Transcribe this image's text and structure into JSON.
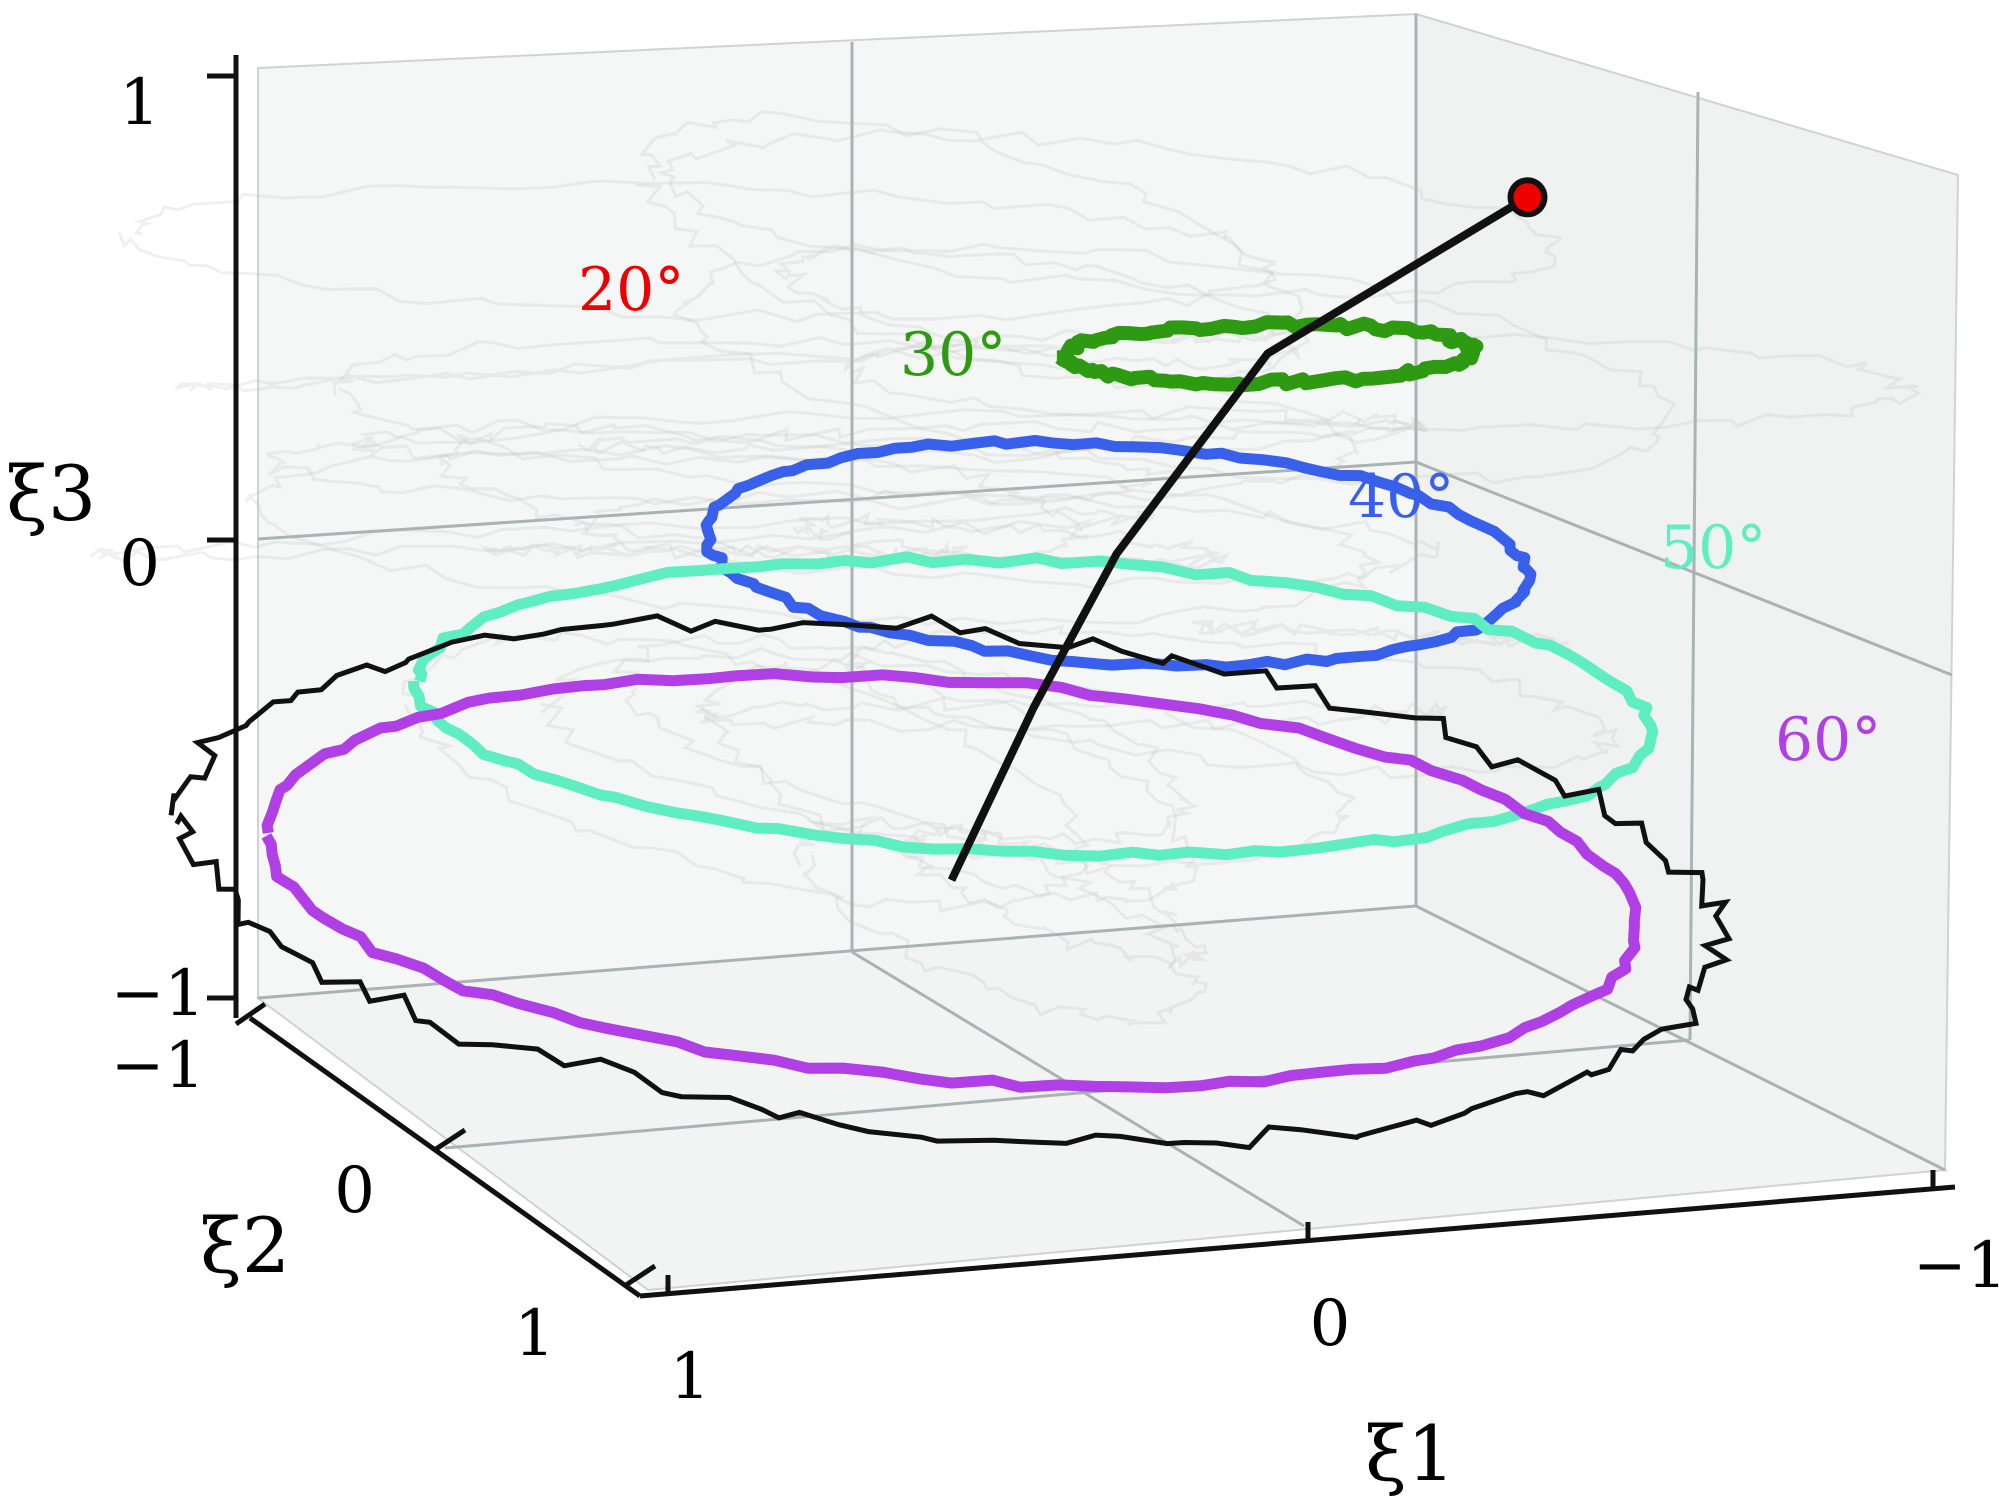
{
  "chart_data": {
    "type": "line",
    "projection": "3d",
    "title": "",
    "axes": {
      "x": {
        "label": "ξ1",
        "range": [
          -1,
          1
        ],
        "ticks": [
          "1",
          "0",
          "−1"
        ]
      },
      "y": {
        "label": "ξ2",
        "range": [
          -1,
          1
        ],
        "ticks": [
          "−1",
          "0",
          "1"
        ]
      },
      "z": {
        "label": "ξ3",
        "range": [
          -1,
          1
        ],
        "ticks": [
          "1",
          "0",
          "−1"
        ]
      }
    },
    "grid": true,
    "colors": {
      "deg20": "#ee0000",
      "deg30": "#2e9a12",
      "deg40": "#3860ea",
      "deg50": "#5fedc2",
      "deg60": "#b13fe6",
      "path": "#111111",
      "background": "#bbbbbb"
    },
    "loop_labels": [
      "20°",
      "30°",
      "40°",
      "50°",
      "60°"
    ],
    "series": [
      {
        "label": "20°",
        "type": "fixed point",
        "point": {
          "x": -0.7,
          "y": 0.3,
          "z": 0.62
        }
      },
      {
        "label": "30°",
        "type": "limit cycle",
        "center": {
          "x": -0.3,
          "y": 0.2,
          "z": 0.25
        },
        "amplitude": {
          "x": 0.3,
          "z": 0.08
        }
      },
      {
        "label": "40°",
        "type": "limit cycle",
        "center": {
          "x": -0.1,
          "y": 0.3,
          "z": -0.15
        },
        "amplitude": {
          "x": 0.6,
          "z": 0.3
        }
      },
      {
        "label": "50°",
        "type": "limit cycle",
        "center": {
          "x": 0.0,
          "y": 0.4,
          "z": -0.45
        },
        "amplitude": {
          "x": 0.9,
          "z": 0.4
        }
      },
      {
        "label": "60°",
        "type": "limit cycle",
        "center": {
          "x": 0.1,
          "y": 0.5,
          "z": -0.8
        },
        "amplitude": {
          "x": 1.0,
          "z": 0.55
        }
      }
    ],
    "mean_path": [
      {
        "x": -0.7,
        "y": 0.3,
        "z": 0.62
      },
      {
        "x": -0.3,
        "y": 0.2,
        "z": 0.25
      },
      {
        "x": -0.1,
        "y": 0.3,
        "z": -0.15
      },
      {
        "x": 0.0,
        "y": 0.4,
        "z": -0.45
      },
      {
        "x": 0.1,
        "y": 0.5,
        "z": -0.8
      }
    ]
  }
}
